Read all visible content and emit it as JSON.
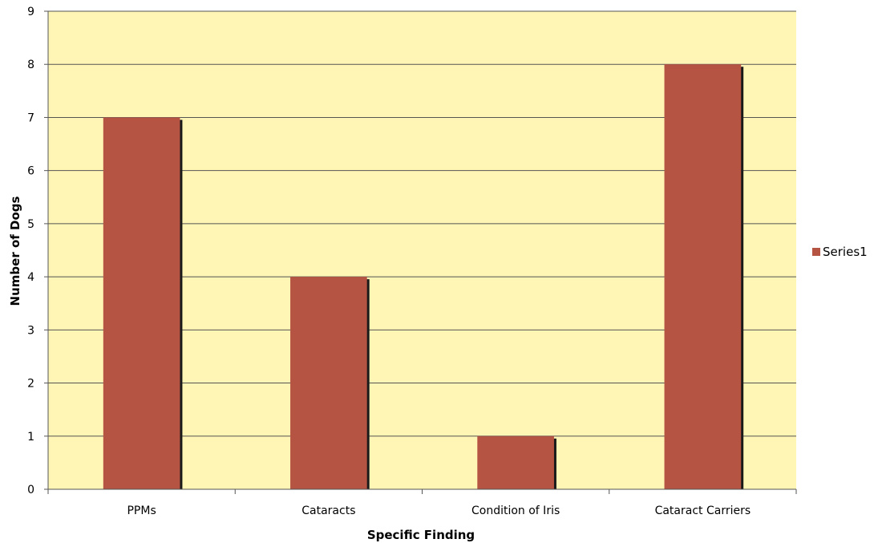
{
  "chart_data": {
    "type": "bar",
    "title": "",
    "xlabel": "Specific Finding",
    "ylabel": "Number of Dogs",
    "categories": [
      "PPMs",
      "Cataracts",
      "Condition of Iris",
      "Cataract Carriers"
    ],
    "series": [
      {
        "name": "Series1",
        "values": [
          7,
          4,
          1,
          8
        ]
      }
    ],
    "ylim": [
      0,
      9
    ],
    "yticks": [
      0,
      1,
      2,
      3,
      4,
      5,
      6,
      7,
      8,
      9
    ],
    "grid": true,
    "legend_position": "right",
    "colors": {
      "plot_background": "#FFF5B4",
      "bar": "#B55442",
      "bar_shadow": "#1a1a1a",
      "gridline": "#555555",
      "axis": "#555555"
    }
  }
}
